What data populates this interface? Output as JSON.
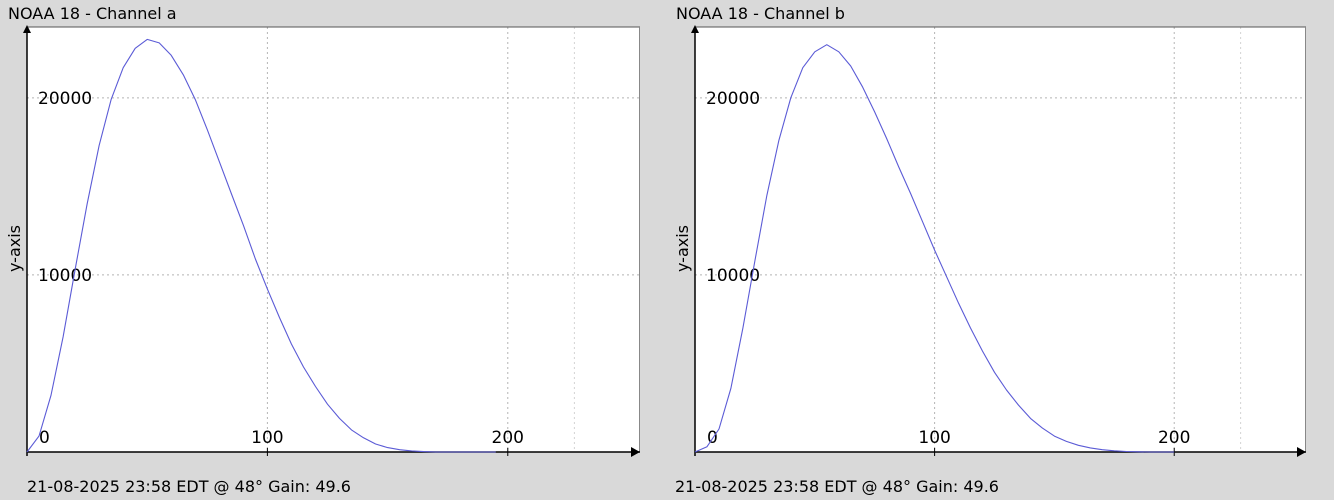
{
  "charts": [
    {
      "title": "NOAA 18 - Channel a",
      "footer": "21-08-2025 23:58 EDT @ 48° Gain: 49.6"
    },
    {
      "title": "NOAA 18 - Channel b",
      "footer": "21-08-2025 23:58 EDT @ 48° Gain: 49.6"
    }
  ],
  "chart_data": [
    {
      "type": "line",
      "title": "NOAA 18 - Channel a",
      "xlabel": "",
      "ylabel": "y-axis",
      "xlim": [
        0,
        255
      ],
      "ylim": [
        0,
        24000
      ],
      "xticks": [
        0,
        100,
        200
      ],
      "yticks": [
        10000,
        20000
      ],
      "grid": true,
      "line_color": "#5b5bd6",
      "series": [
        {
          "x": [
            0,
            5,
            10,
            15,
            20,
            25,
            30,
            35,
            40,
            45,
            50,
            55,
            60,
            65,
            70,
            75,
            80,
            85,
            90,
            95,
            100,
            105,
            110,
            115,
            120,
            125,
            130,
            135,
            140,
            145,
            150,
            155,
            160,
            165,
            170,
            175,
            180,
            185,
            190,
            195
          ],
          "y": [
            0,
            900,
            3200,
            6500,
            10300,
            14000,
            17300,
            19900,
            21700,
            22800,
            23300,
            23100,
            22400,
            21300,
            19900,
            18200,
            16400,
            14600,
            12800,
            10900,
            9200,
            7600,
            6100,
            4800,
            3700,
            2700,
            1900,
            1250,
            800,
            450,
            250,
            130,
            60,
            20,
            0,
            0,
            0,
            0,
            0,
            0
          ]
        }
      ]
    },
    {
      "type": "line",
      "title": "NOAA 18 - Channel b",
      "xlabel": "",
      "ylabel": "y-axis",
      "xlim": [
        0,
        255
      ],
      "ylim": [
        0,
        24000
      ],
      "xticks": [
        0,
        100,
        200
      ],
      "yticks": [
        10000,
        20000
      ],
      "grid": true,
      "line_color": "#5b5bd6",
      "series": [
        {
          "x": [
            0,
            5,
            10,
            15,
            20,
            25,
            30,
            35,
            40,
            45,
            50,
            55,
            60,
            65,
            70,
            75,
            80,
            85,
            90,
            95,
            100,
            105,
            110,
            115,
            120,
            125,
            130,
            135,
            140,
            145,
            150,
            155,
            160,
            165,
            170,
            175,
            180,
            185,
            190,
            195,
            200
          ],
          "y": [
            0,
            300,
            1300,
            3600,
            7000,
            10800,
            14500,
            17600,
            20000,
            21700,
            22600,
            23000,
            22600,
            21800,
            20600,
            19200,
            17700,
            16100,
            14600,
            13000,
            11400,
            9900,
            8400,
            7000,
            5700,
            4500,
            3500,
            2650,
            1900,
            1350,
            900,
            600,
            380,
            230,
            130,
            70,
            30,
            10,
            0,
            0,
            0
          ]
        }
      ]
    }
  ]
}
